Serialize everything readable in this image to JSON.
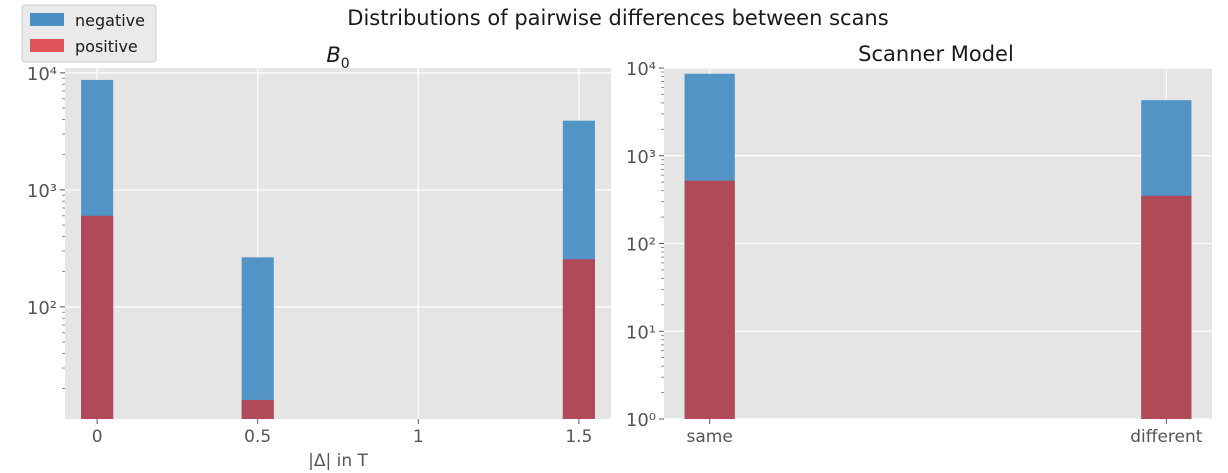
{
  "figure": {
    "suptitle": "Distributions of pairwise differences between scans"
  },
  "legend": {
    "placement": "top-left",
    "entries": [
      {
        "label": "negative",
        "color": "#4a8fc3"
      },
      {
        "label": "positive",
        "color": "#e0525a"
      }
    ]
  },
  "colors": {
    "negative": "#4a8fc3",
    "positive": "#e0525a",
    "overlap": "#b04a58",
    "axes_bg": "#e5e5e5",
    "grid": "#ffffff"
  },
  "chart_data": [
    {
      "type": "bar",
      "title_main": "B",
      "title_sub": "0",
      "xlabel": "|Δ| in T",
      "ylabel": "",
      "yscale": "log",
      "grid": true,
      "xlim": [
        -0.1,
        1.6
      ],
      "ylim": [
        11,
        11000
      ],
      "x_ticks": [
        0,
        0.5,
        1,
        1.5
      ],
      "x_tick_labels": [
        "0",
        "0.5",
        "1",
        "1.5"
      ],
      "y_ticks": [
        100,
        1000,
        10000
      ],
      "y_tick_labels": [
        "10²",
        "10³",
        "10⁴"
      ],
      "bar_width": 0.1,
      "x": [
        0,
        0.5,
        1.5
      ],
      "series": [
        {
          "name": "negative",
          "values": [
            8700,
            265,
            3900
          ]
        },
        {
          "name": "positive",
          "values": [
            600,
            16,
            255
          ]
        }
      ]
    },
    {
      "type": "bar",
      "title": "Scanner Model",
      "xlabel": "",
      "ylabel": "",
      "yscale": "log",
      "grid": true,
      "xlim": [
        -0.1,
        1.1
      ],
      "ylim": [
        1,
        10000
      ],
      "categories": [
        "same",
        "different"
      ],
      "x": [
        0,
        1
      ],
      "y_ticks": [
        1,
        10,
        100,
        1000,
        10000
      ],
      "y_tick_labels": [
        "10⁰",
        "10¹",
        "10²",
        "10³",
        "10⁴"
      ],
      "bar_width": 0.11,
      "series": [
        {
          "name": "negative",
          "values": [
            8600,
            4300
          ]
        },
        {
          "name": "positive",
          "values": [
            520,
            350
          ]
        }
      ]
    }
  ]
}
